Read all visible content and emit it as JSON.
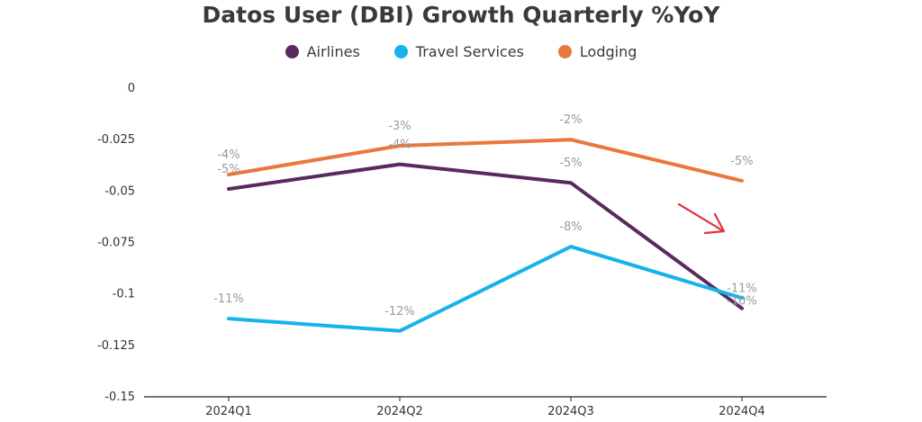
{
  "chart_data": {
    "type": "line",
    "title": "Datos User (DBI) Growth Quarterly %YoY",
    "categories": [
      "2024Q1",
      "2024Q2",
      "2024Q3",
      "2024Q4"
    ],
    "ylim": [
      -0.15,
      0
    ],
    "yticks": [
      "0",
      "-0.025",
      "-0.05",
      "-0.075",
      "-0.1",
      "-0.125",
      "-0.15"
    ],
    "ytick_values": [
      0,
      -0.025,
      -0.05,
      -0.075,
      -0.1,
      -0.125,
      -0.15
    ],
    "grid": false,
    "legend_position": "top-center",
    "series": [
      {
        "name": "Airlines",
        "color": "#5a2a5e",
        "values": [
          -0.049,
          -0.037,
          -0.046,
          -0.107
        ],
        "labels": [
          "-5%",
          "-4%",
          "-5%",
          "-11%"
        ]
      },
      {
        "name": "Travel Services",
        "color": "#16b3ea",
        "values": [
          -0.112,
          -0.118,
          -0.077,
          -0.102
        ],
        "labels": [
          "-11%",
          "-12%",
          "-8%",
          "-10%"
        ]
      },
      {
        "name": "Lodging",
        "color": "#ea773c",
        "values": [
          -0.042,
          -0.028,
          -0.025,
          -0.045
        ],
        "labels": [
          "-4%",
          "-3%",
          "-2%",
          "-5%"
        ]
      }
    ],
    "annotations": [
      {
        "type": "arrow",
        "direction": "down-right",
        "color": "#e53340"
      }
    ]
  }
}
